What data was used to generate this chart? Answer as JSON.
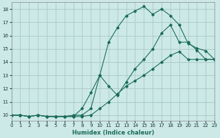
{
  "xlabel": "Humidex (Indice chaleur)",
  "background_color": "#cce9e7",
  "grid_color": "#aaccca",
  "line_color": "#1a6b5a",
  "xlim": [
    0,
    23
  ],
  "ylim": [
    9.6,
    18.5
  ],
  "xticks": [
    0,
    1,
    2,
    3,
    4,
    5,
    6,
    7,
    8,
    9,
    10,
    11,
    12,
    13,
    14,
    15,
    16,
    17,
    18,
    19,
    20,
    21,
    22,
    23
  ],
  "yticks": [
    10,
    11,
    12,
    13,
    14,
    15,
    16,
    17,
    18
  ],
  "curve1_x": [
    0,
    1,
    2,
    3,
    4,
    5,
    6,
    7,
    8,
    9,
    10,
    11,
    12,
    13,
    14,
    15,
    16,
    17,
    18,
    19,
    20,
    21,
    22,
    23
  ],
  "curve1_y": [
    10,
    10,
    9.9,
    10,
    9.9,
    9.9,
    9.9,
    10,
    10,
    10.5,
    13,
    15.5,
    16.6,
    17.5,
    17.85,
    18.2,
    17.6,
    18.0,
    17.5,
    16.8,
    15.4,
    15.05,
    14.85,
    14.2
  ],
  "curve2_x": [
    0,
    1,
    2,
    3,
    4,
    5,
    6,
    7,
    8,
    9,
    10,
    11,
    12,
    13,
    14,
    15,
    16,
    17,
    18,
    19,
    20,
    21,
    22,
    23
  ],
  "curve2_y": [
    10,
    10,
    9.9,
    10,
    9.9,
    9.9,
    9.9,
    9.9,
    10.5,
    11.7,
    13.0,
    12.2,
    11.5,
    12.5,
    13.5,
    14.2,
    15.0,
    16.2,
    16.8,
    15.5,
    15.5,
    14.9,
    14.2,
    14.2
  ],
  "curve3_x": [
    0,
    1,
    2,
    3,
    4,
    5,
    6,
    7,
    8,
    9,
    10,
    11,
    12,
    13,
    14,
    15,
    16,
    17,
    18,
    19,
    20,
    21,
    22,
    23
  ],
  "curve3_y": [
    10,
    10,
    9.9,
    10,
    9.9,
    9.9,
    9.9,
    9.9,
    9.9,
    10.0,
    10.5,
    11.0,
    11.6,
    12.2,
    12.6,
    13.0,
    13.5,
    14.0,
    14.5,
    14.8,
    14.2,
    14.2,
    14.2,
    14.2
  ]
}
